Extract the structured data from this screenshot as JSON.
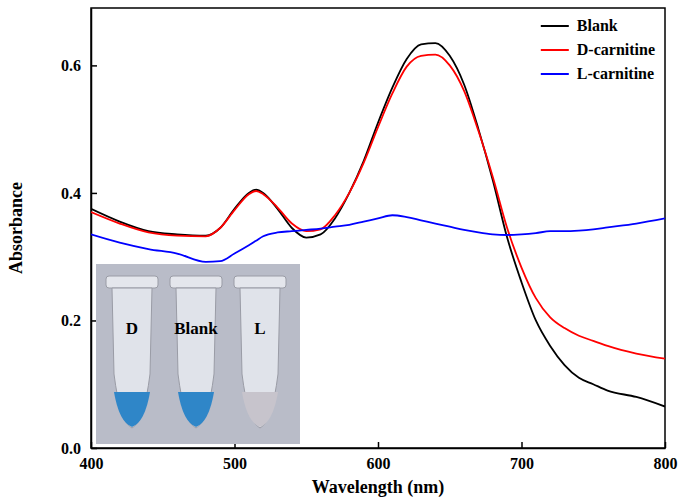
{
  "chart_data": {
    "type": "line",
    "x_label": "Wavelength (nm)",
    "y_label": "Absorbance",
    "x": [
      400,
      420,
      440,
      460,
      480,
      490,
      500,
      510,
      515,
      520,
      530,
      540,
      550,
      560,
      570,
      580,
      590,
      600,
      610,
      620,
      630,
      640,
      650,
      660,
      670,
      680,
      690,
      700,
      710,
      720,
      730,
      740,
      750,
      760,
      780,
      800
    ],
    "series": [
      {
        "name": "Blank",
        "color": "#000000",
        "values": [
          0.375,
          0.355,
          0.34,
          0.335,
          0.333,
          0.345,
          0.375,
          0.4,
          0.405,
          0.4,
          0.375,
          0.345,
          0.33,
          0.335,
          0.36,
          0.4,
          0.45,
          0.51,
          0.565,
          0.61,
          0.633,
          0.635,
          0.615,
          0.57,
          0.5,
          0.42,
          0.33,
          0.26,
          0.2,
          0.16,
          0.13,
          0.11,
          0.1,
          0.09,
          0.08,
          0.065
        ]
      },
      {
        "name": "D-carnitine",
        "color": "#ff0000",
        "values": [
          0.37,
          0.352,
          0.338,
          0.333,
          0.332,
          0.345,
          0.373,
          0.398,
          0.403,
          0.398,
          0.377,
          0.352,
          0.34,
          0.343,
          0.365,
          0.4,
          0.447,
          0.503,
          0.556,
          0.598,
          0.615,
          0.617,
          0.6,
          0.56,
          0.497,
          0.425,
          0.345,
          0.283,
          0.235,
          0.205,
          0.188,
          0.176,
          0.168,
          0.16,
          0.148,
          0.14
        ]
      },
      {
        "name": "L-carnitine",
        "color": "#0000ff",
        "values": [
          0.335,
          0.322,
          0.312,
          0.305,
          0.292,
          0.293,
          0.305,
          0.318,
          0.325,
          0.332,
          0.338,
          0.34,
          0.342,
          0.344,
          0.347,
          0.35,
          0.355,
          0.36,
          0.365,
          0.362,
          0.357,
          0.352,
          0.347,
          0.342,
          0.338,
          0.335,
          0.334,
          0.335,
          0.337,
          0.34,
          0.34,
          0.341,
          0.343,
          0.346,
          0.352,
          0.36
        ]
      }
    ],
    "xlim": [
      400,
      800
    ],
    "xticks": [
      400,
      500,
      600,
      700,
      800
    ],
    "ylim": [
      0,
      0.69
    ],
    "yticks": [
      {
        "value": 0,
        "label": "0.0"
      },
      {
        "value": 0.2,
        "label": "0.2"
      },
      {
        "value": 0.4,
        "label": "0.4"
      },
      {
        "value": 0.6,
        "label": "0.6"
      }
    ],
    "legend": "top right",
    "annotations": [
      "D",
      "Blank",
      "L"
    ]
  }
}
